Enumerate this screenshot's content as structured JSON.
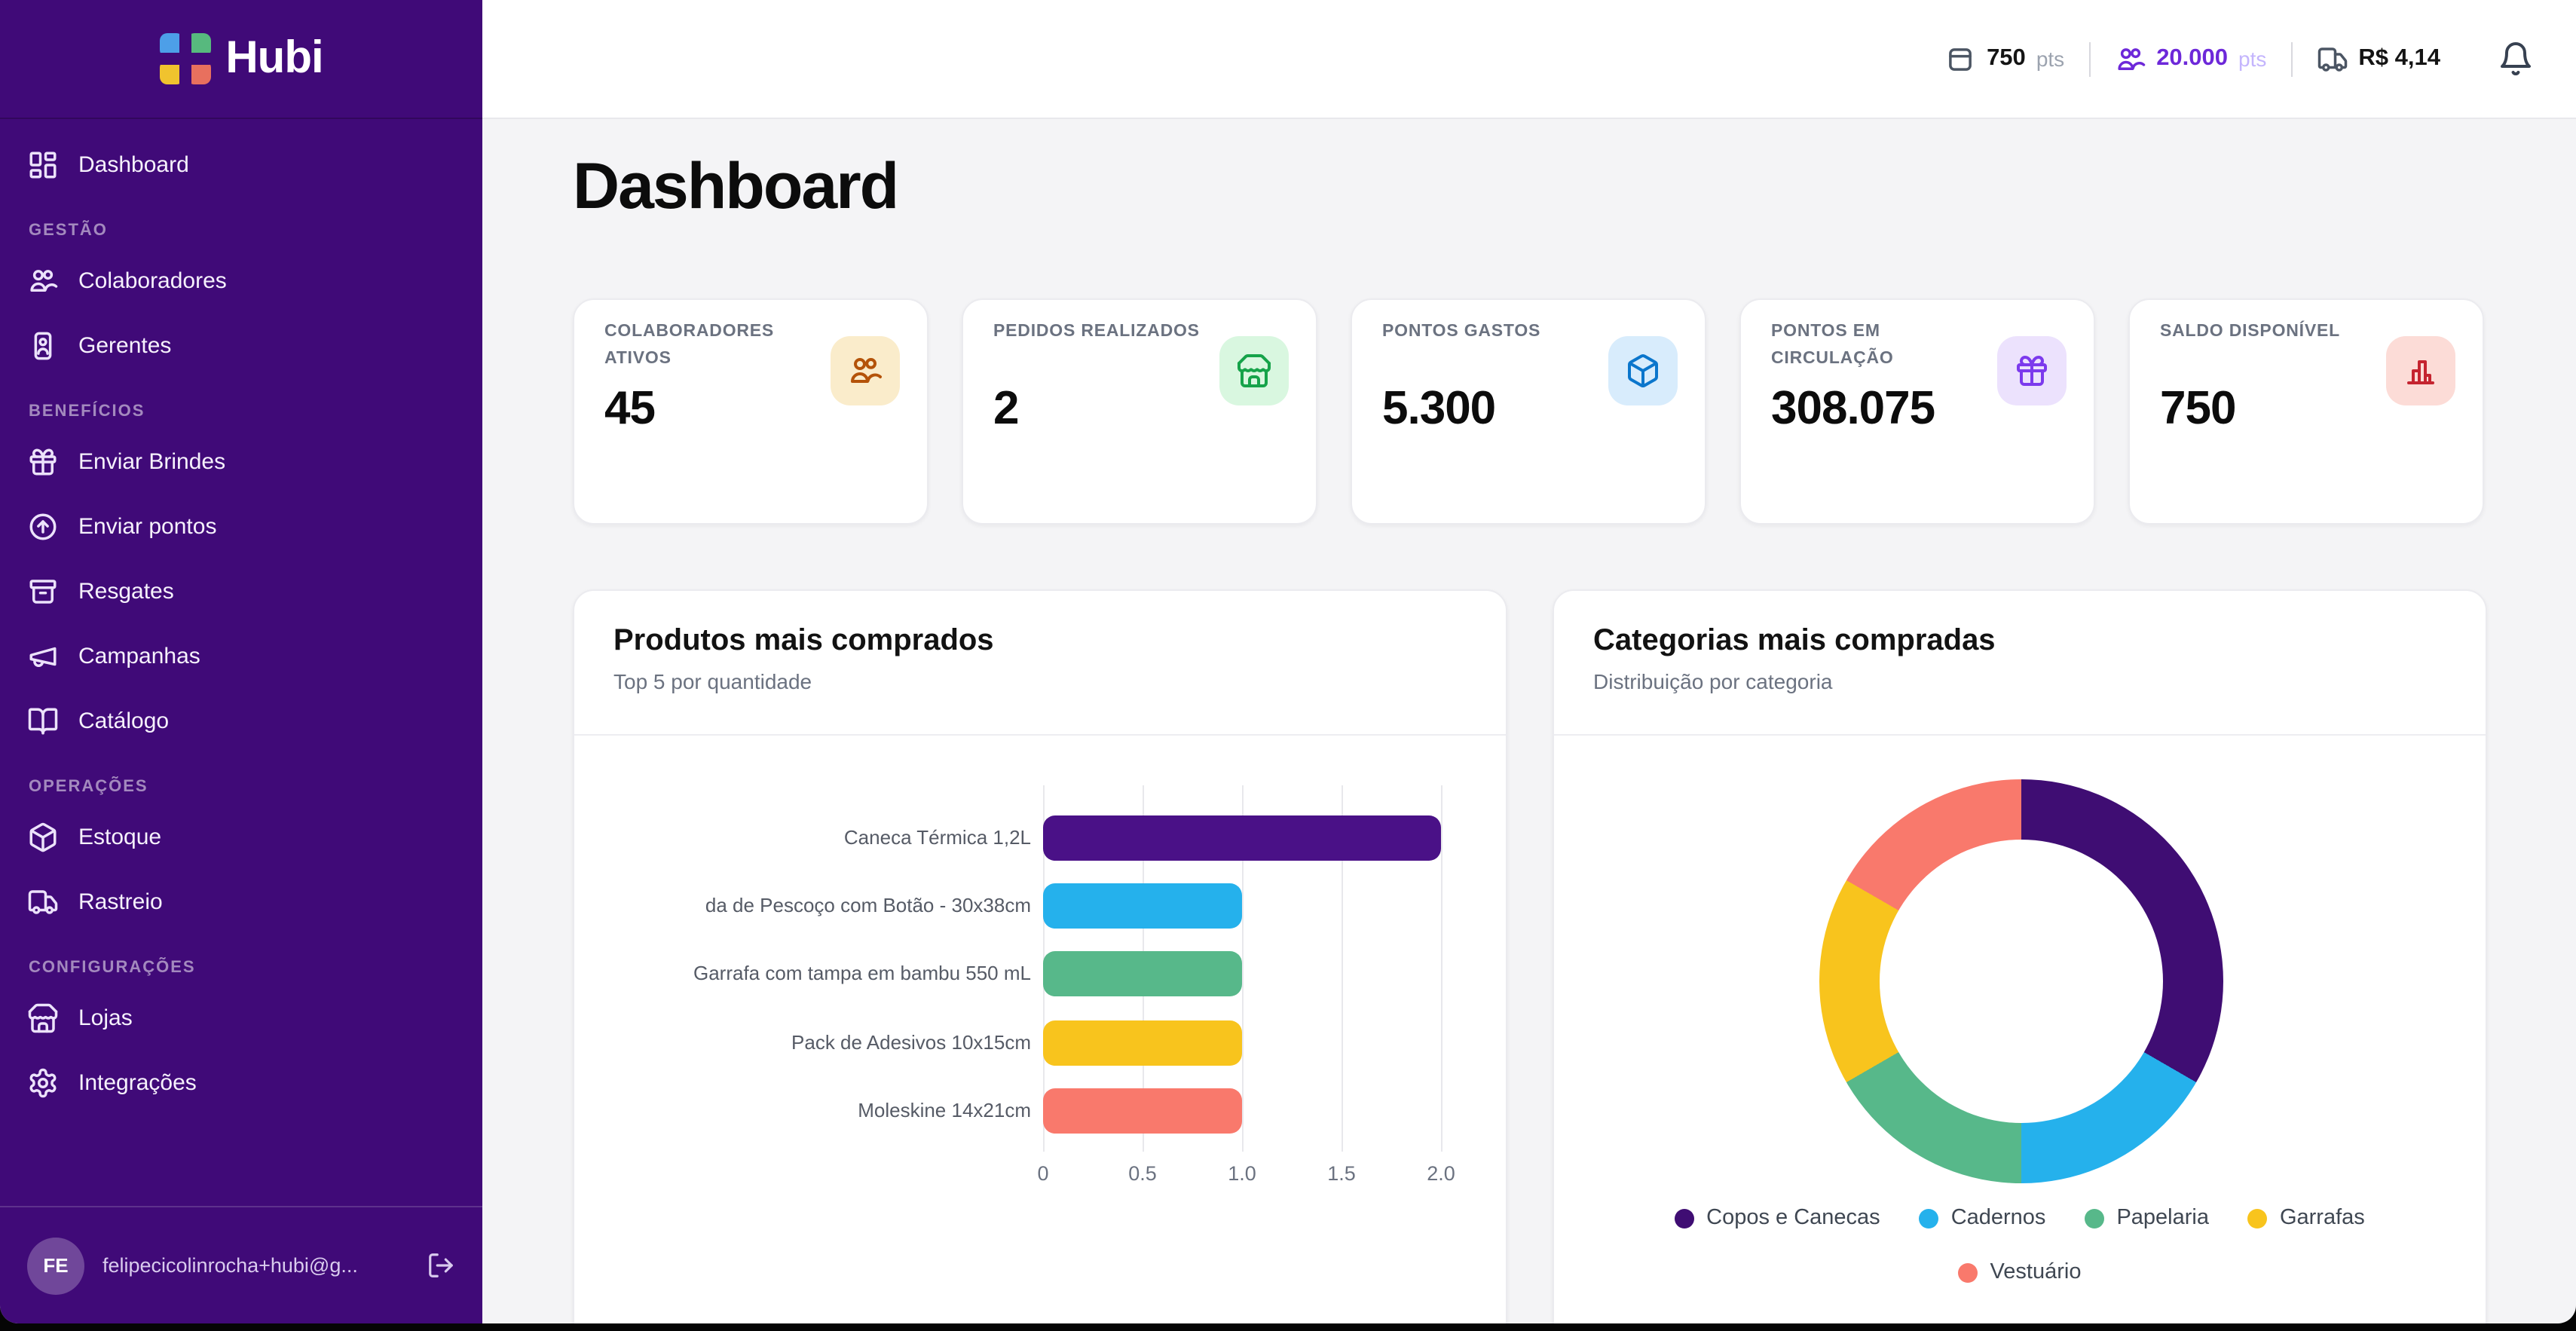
{
  "app": {
    "logo_text": "Hubi",
    "sidebar_bg": "#400a78",
    "bottom_bar_color": "#050505"
  },
  "sidebar": {
    "dashboard": {
      "label": "Dashboard"
    },
    "sections": [
      {
        "label": "GESTÃO",
        "items": [
          {
            "icon": "users-icon",
            "label": "Colaboradores"
          },
          {
            "icon": "id-card-icon",
            "label": "Gerentes"
          }
        ]
      },
      {
        "label": "BENEFÍCIOS",
        "items": [
          {
            "icon": "gift-icon",
            "label": "Enviar Brindes"
          },
          {
            "icon": "arrow-up-circle-icon",
            "label": "Enviar pontos"
          },
          {
            "icon": "archive-icon",
            "label": "Resgates"
          },
          {
            "icon": "megaphone-icon",
            "label": "Campanhas"
          },
          {
            "icon": "book-open-icon",
            "label": "Catálogo"
          }
        ]
      },
      {
        "label": "OPERAÇÕES",
        "items": [
          {
            "icon": "box-icon",
            "label": "Estoque"
          },
          {
            "icon": "truck-icon",
            "label": "Rastreio"
          }
        ]
      },
      {
        "label": "CONFIGURAÇÕES",
        "items": [
          {
            "icon": "store-icon",
            "label": "Lojas"
          },
          {
            "icon": "gear-icon",
            "label": "Integrações"
          }
        ]
      }
    ],
    "user": {
      "initials": "FE",
      "email": "felipecicolinrocha+hubi@g..."
    }
  },
  "header": {
    "wallet": {
      "value": "750",
      "unit": "pts"
    },
    "points": {
      "value": "20.000",
      "unit": "pts",
      "color": "#6d28d9"
    },
    "shipping": {
      "value": "R$ 4,14"
    }
  },
  "page": {
    "title": "Dashboard"
  },
  "stat_cards": [
    {
      "label": "COLABORADORES ATIVOS",
      "value": "45",
      "icon": "users-icon",
      "icon_color": "#b45309",
      "icon_bg": "#faeccb"
    },
    {
      "label": "PEDIDOS REALIZADOS",
      "value": "2",
      "icon": "store-icon",
      "icon_color": "#16a34a",
      "icon_bg": "#d9f7e0"
    },
    {
      "label": "PONTOS GASTOS",
      "value": "5.300",
      "icon": "box-icon",
      "icon_color": "#0b76cc",
      "icon_bg": "#d8ecfc"
    },
    {
      "label": "PONTOS EM CIRCULAÇÃO",
      "value": "308.075",
      "icon": "gift-icon",
      "icon_color": "#7c3aed",
      "icon_bg": "#ece2fd"
    },
    {
      "label": "SALDO DISPONÍVEL",
      "value": "750",
      "icon": "bar-chart-icon",
      "icon_color": "#c52430",
      "icon_bg": "#fcdcd7"
    }
  ],
  "chart_data": [
    {
      "type": "bar",
      "orientation": "horizontal",
      "title": "Produtos mais comprados",
      "subtitle": "Top 5 por quantidade",
      "categories": [
        "Caneca Térmica 1,2L",
        "da de Pescoço com Botão - 30x38cm",
        "Garrafa com tampa em bambu 550 mL",
        "Pack de Adesivos 10x15cm",
        "Moleskine 14x21cm"
      ],
      "values": [
        2,
        1,
        1,
        1,
        1
      ],
      "colors": [
        "#4a1187",
        "#25b1ec",
        "#57b88a",
        "#f8c41d",
        "#f9796c"
      ],
      "xlabel": "",
      "ylabel": "",
      "xlim": [
        0,
        2
      ],
      "xticks": [
        "0",
        "0.5",
        "1.0",
        "1.5",
        "2.0"
      ],
      "grid": true
    },
    {
      "type": "pie",
      "donut": true,
      "title": "Categorias mais compradas",
      "subtitle": "Distribuição por categoria",
      "categories": [
        "Copos e Canecas",
        "Cadernos",
        "Papelaria",
        "Garrafas",
        "Vestuário"
      ],
      "values": [
        2,
        1,
        1,
        1,
        1
      ],
      "percents": [
        33.3,
        16.7,
        16.7,
        16.7,
        16.7
      ],
      "colors": [
        "#3f0d73",
        "#25b1ec",
        "#57b88a",
        "#f8c41d",
        "#f9796c"
      ],
      "start_angle": 0,
      "legend_position": "bottom"
    }
  ]
}
